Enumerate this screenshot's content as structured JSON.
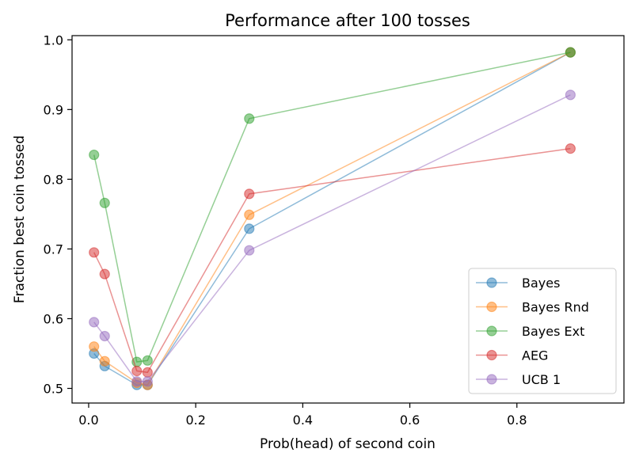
{
  "chart_data": {
    "type": "line",
    "title": "Performance after 100 tosses",
    "xlabel": "Prob(head) of second coin",
    "ylabel": "Fraction best coin tossed",
    "xlim": [
      -0.031,
      1.0
    ],
    "ylim": [
      0.479,
      1.006
    ],
    "xticks": [
      0.0,
      0.2,
      0.4,
      0.6,
      0.8
    ],
    "xtick_labels": [
      "0.0",
      "0.2",
      "0.4",
      "0.6",
      "0.8"
    ],
    "yticks": [
      0.5,
      0.6,
      0.7,
      0.8,
      0.9,
      1.0
    ],
    "ytick_labels": [
      "0.5",
      "0.6",
      "0.7",
      "0.8",
      "0.9",
      "1.0"
    ],
    "grid": false,
    "legend_position": "lower-right",
    "x": [
      0.01,
      0.03,
      0.09,
      0.11,
      0.3,
      0.9
    ],
    "series": [
      {
        "name": "Bayes",
        "color": "#1f77b4",
        "values": [
          0.55,
          0.532,
          0.505,
          0.505,
          0.729,
          0.982
        ]
      },
      {
        "name": "Bayes Rnd",
        "color": "#ff7f0e",
        "values": [
          0.56,
          0.539,
          0.508,
          0.505,
          0.749,
          0.982
        ]
      },
      {
        "name": "Bayes Ext",
        "color": "#2ca02c",
        "values": [
          0.835,
          0.766,
          0.538,
          0.54,
          0.887,
          0.982
        ]
      },
      {
        "name": "AEG",
        "color": "#d62728",
        "values": [
          0.695,
          0.664,
          0.525,
          0.523,
          0.779,
          0.844
        ]
      },
      {
        "name": "UCB 1",
        "color": "#9467bd",
        "values": [
          0.595,
          0.575,
          0.51,
          0.51,
          0.698,
          0.921
        ]
      }
    ]
  }
}
